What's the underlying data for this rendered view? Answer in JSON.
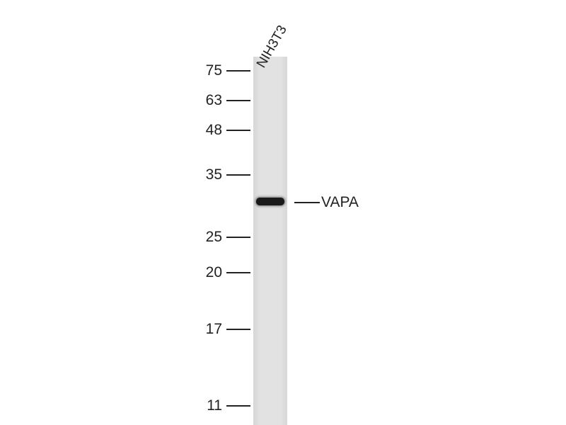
{
  "lanes": [
    {
      "label": "NIH3T3"
    }
  ],
  "markers": [
    {
      "kda": "75"
    },
    {
      "kda": "63"
    },
    {
      "kda": "48"
    },
    {
      "kda": "35"
    },
    {
      "kda": "25"
    },
    {
      "kda": "20"
    },
    {
      "kda": "17"
    },
    {
      "kda": "11"
    }
  ],
  "target": {
    "label": "VAPA"
  },
  "colors": {
    "band": "#1a1a1a",
    "lane": "#e0e0e0"
  }
}
